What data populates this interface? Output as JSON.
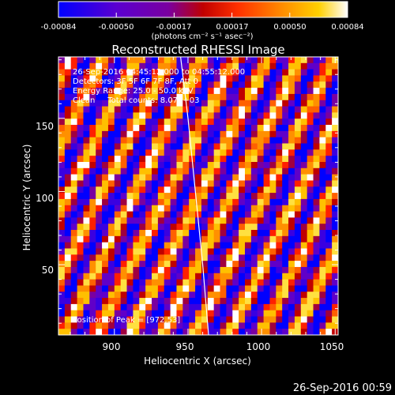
{
  "chart_data": {
    "type": "heatmap",
    "title": "Reconstructed RHESSI Image",
    "xlabel": "Heliocentric X (arcsec)",
    "ylabel": "Heliocentric Y (arcsec)",
    "xlim": [
      862,
      1052
    ],
    "ylim": [
      2,
      192
    ],
    "x_ticks": [
      900,
      950,
      1000,
      1050
    ],
    "y_ticks": [
      50,
      100,
      150
    ],
    "colorbar": {
      "range": [
        -0.00084,
        0.00084
      ],
      "ticks": [
        "-0.00084",
        "-0.00050",
        "-0.00017",
        "0.00017",
        "0.00050",
        "0.00084"
      ],
      "unit_label": "(photons cm⁻² s⁻¹ asec⁻²)"
    },
    "annotations": [
      "26-Sep-2016 04:45:12.000 to 04:55:12.000",
      "Detectors: 3F 5F 6F 7F 8F, Att 0",
      "Energy Range: 25.0 - 50.0 keV",
      "Clean     Total counts: 8.07E+03"
    ],
    "peak_label": "Position of Peak = [972,53]",
    "peak": [
      972,
      53
    ],
    "limb_curve": [
      [
        945,
        192
      ],
      [
        950,
        150
      ],
      [
        955,
        100
      ],
      [
        960,
        50
      ],
      [
        964,
        2
      ]
    ],
    "grid": false
  },
  "timestamp": "26-Sep-2016 00:59"
}
